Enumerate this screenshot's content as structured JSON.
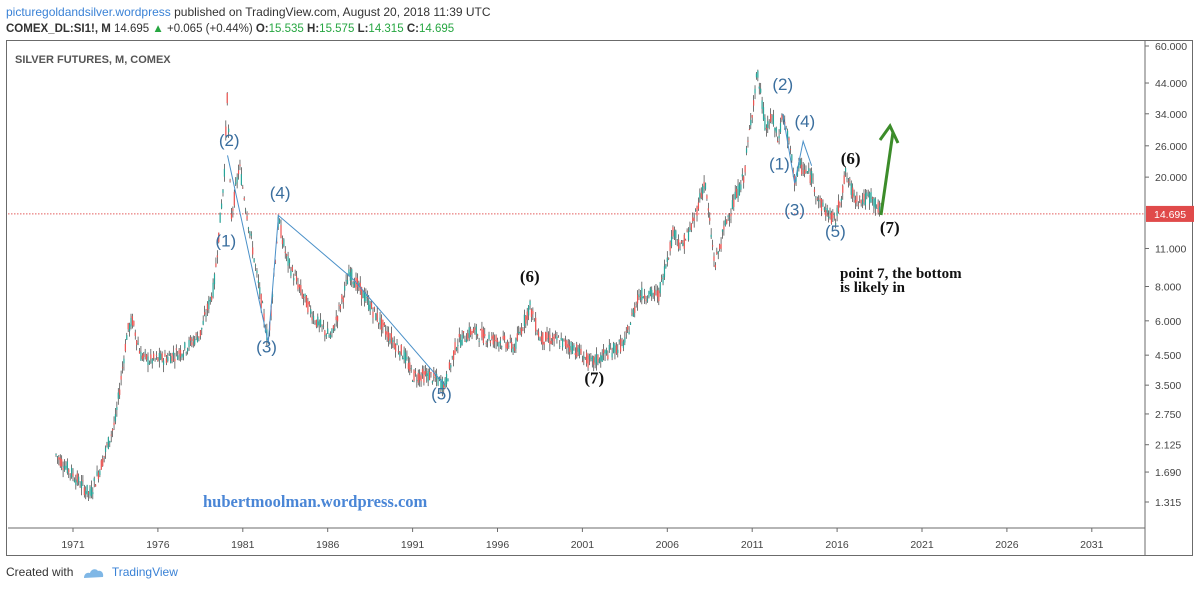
{
  "header": {
    "publisher": "picturegoldandsilver.wordpress",
    "published_text": "published on TradingView.com, August 20, 2018 11:39 UTC",
    "symbol": "COMEX_DL:SI1!, M",
    "last": "14.695",
    "change_arrow": "▲",
    "change": "+0.065 (+0.44%)",
    "o_label": "O:",
    "o_value": "15.535",
    "h_label": "H:",
    "h_value": "15.575",
    "l_label": "L:",
    "l_value": "14.315",
    "c_label": "C:",
    "c_value": "14.695"
  },
  "footer": {
    "created_with": "Created with",
    "brand": "TradingView"
  },
  "chart_data": {
    "type": "line",
    "title": "SILVER FUTURES, M, COMEX",
    "watermark": "hubertmoolman.wordpress.com",
    "scale": "log",
    "x_ticks": [
      "1971",
      "1976",
      "1981",
      "1986",
      "1991",
      "1996",
      "2001",
      "2006",
      "2011",
      "2016",
      "2021",
      "2026",
      "2031"
    ],
    "y_ticks": [
      "60.000",
      "44.000",
      "34.000",
      "26.000",
      "20.000",
      "14.695",
      "11.000",
      "8.000",
      "6.000",
      "4.500",
      "3.500",
      "2.750",
      "2.125",
      "1.690",
      "1.315"
    ],
    "y_tick_values": [
      60,
      44,
      34,
      26,
      20,
      14.695,
      11,
      8,
      6,
      4.5,
      3.5,
      2.75,
      2.125,
      1.69,
      1.315
    ],
    "last_price": 14.695,
    "colors": {
      "up": "#26a69a",
      "down": "#ef5350",
      "candle": "#3b3b3b",
      "wave_line": "#4a90c8",
      "price_line": "#e35d5d",
      "arrow": "#3c8c2a",
      "label_blue": "#3a6e9e"
    },
    "series": [
      {
        "values": [
          [
            1970.0,
            1.95
          ],
          [
            1971.0,
            1.65
          ],
          [
            1972.0,
            1.4
          ],
          [
            1972.6,
            1.75
          ],
          [
            1973.5,
            2.6
          ],
          [
            1974.2,
            5.5
          ],
          [
            1974.5,
            6.0
          ],
          [
            1975.0,
            4.5
          ],
          [
            1975.5,
            4.3
          ],
          [
            1976.5,
            4.4
          ],
          [
            1977.5,
            4.7
          ],
          [
            1978.5,
            5.4
          ],
          [
            1979.3,
            8.0
          ],
          [
            1979.9,
            20.0
          ],
          [
            1980.1,
            42.0
          ],
          [
            1980.3,
            14.0
          ],
          [
            1980.8,
            22.0
          ],
          [
            1981.8,
            9.0
          ],
          [
            1982.5,
            5.0
          ],
          [
            1983.1,
            14.0
          ],
          [
            1983.6,
            10.0
          ],
          [
            1984.5,
            7.5
          ],
          [
            1985.3,
            6.0
          ],
          [
            1986.2,
            5.2
          ],
          [
            1987.3,
            9.0
          ],
          [
            1988.5,
            6.8
          ],
          [
            1989.5,
            5.4
          ],
          [
            1990.5,
            4.5
          ],
          [
            1991.0,
            3.8
          ],
          [
            1992.0,
            3.8
          ],
          [
            1992.9,
            3.5
          ],
          [
            1993.6,
            5.0
          ],
          [
            1994.5,
            5.5
          ],
          [
            1995.5,
            5.2
          ],
          [
            1996.5,
            5.0
          ],
          [
            1997.0,
            4.8
          ],
          [
            1997.9,
            6.8
          ],
          [
            1998.5,
            5.2
          ],
          [
            1999.5,
            5.1
          ],
          [
            2000.5,
            4.8
          ],
          [
            2001.5,
            4.2
          ],
          [
            2002.5,
            4.6
          ],
          [
            2003.5,
            5.0
          ],
          [
            2004.3,
            7.5
          ],
          [
            2005.5,
            7.5
          ],
          [
            2006.4,
            13.0
          ],
          [
            2006.8,
            11.0
          ],
          [
            2007.5,
            13.5
          ],
          [
            2008.2,
            19.5
          ],
          [
            2008.8,
            9.5
          ],
          [
            2009.5,
            14.0
          ],
          [
            2010.5,
            20.0
          ],
          [
            2011.0,
            35.0
          ],
          [
            2011.3,
            48.0
          ],
          [
            2011.8,
            30.0
          ],
          [
            2012.2,
            33.0
          ],
          [
            2012.5,
            27.0
          ],
          [
            2012.8,
            34.0
          ],
          [
            2013.2,
            26.0
          ],
          [
            2013.5,
            19.5
          ],
          [
            2013.8,
            22.0
          ],
          [
            2014.5,
            20.0
          ],
          [
            2015.0,
            16.0
          ],
          [
            2015.9,
            13.8
          ],
          [
            2016.5,
            20.5
          ],
          [
            2017.0,
            17.0
          ],
          [
            2017.5,
            16.5
          ],
          [
            2018.0,
            17.0
          ],
          [
            2018.6,
            14.7
          ]
        ]
      }
    ],
    "annotations": [
      {
        "text": "(1)",
        "x": 1980.0,
        "y": 11.2,
        "style": "blue"
      },
      {
        "text": "(2)",
        "x": 1980.2,
        "y": 26.0,
        "style": "blue"
      },
      {
        "text": "(3)",
        "x": 1982.4,
        "y": 4.6,
        "style": "blue"
      },
      {
        "text": "(4)",
        "x": 1983.2,
        "y": 16.7,
        "style": "blue"
      },
      {
        "text": "(5)",
        "x": 1992.7,
        "y": 3.1,
        "style": "blue"
      },
      {
        "text": "(6)",
        "x": 1997.9,
        "y": 8.3,
        "style": "black"
      },
      {
        "text": "(7)",
        "x": 2001.7,
        "y": 3.55,
        "style": "black"
      },
      {
        "text": "(1)",
        "x": 2012.6,
        "y": 21.3,
        "style": "blue"
      },
      {
        "text": "(2)",
        "x": 2012.8,
        "y": 41.5,
        "style": "blue"
      },
      {
        "text": "(3)",
        "x": 2013.5,
        "y": 14.5,
        "style": "blue"
      },
      {
        "text": "(4)",
        "x": 2014.1,
        "y": 30.5,
        "style": "blue"
      },
      {
        "text": "(5)",
        "x": 2015.9,
        "y": 12.1,
        "style": "blue"
      },
      {
        "text": "(6)",
        "x": 2016.8,
        "y": 22.3,
        "style": "black"
      },
      {
        "text": "(7)",
        "x": 2019.1,
        "y": 12.5,
        "style": "black"
      }
    ],
    "note": [
      "point 7, the bottom",
      "is likely in"
    ],
    "wave_lines": [
      [
        [
          1980.1,
          24.0
        ],
        [
          1982.5,
          5.0
        ],
        [
          1983.1,
          14.5
        ],
        [
          1987.5,
          8.5
        ]
      ],
      [
        [
          1987.5,
          8.5
        ],
        [
          1992.9,
          3.5
        ]
      ],
      [
        [
          2012.8,
          34.0
        ],
        [
          2013.5,
          19.0
        ],
        [
          2014.0,
          27.0
        ],
        [
          2014.5,
          22.0
        ]
      ]
    ]
  }
}
